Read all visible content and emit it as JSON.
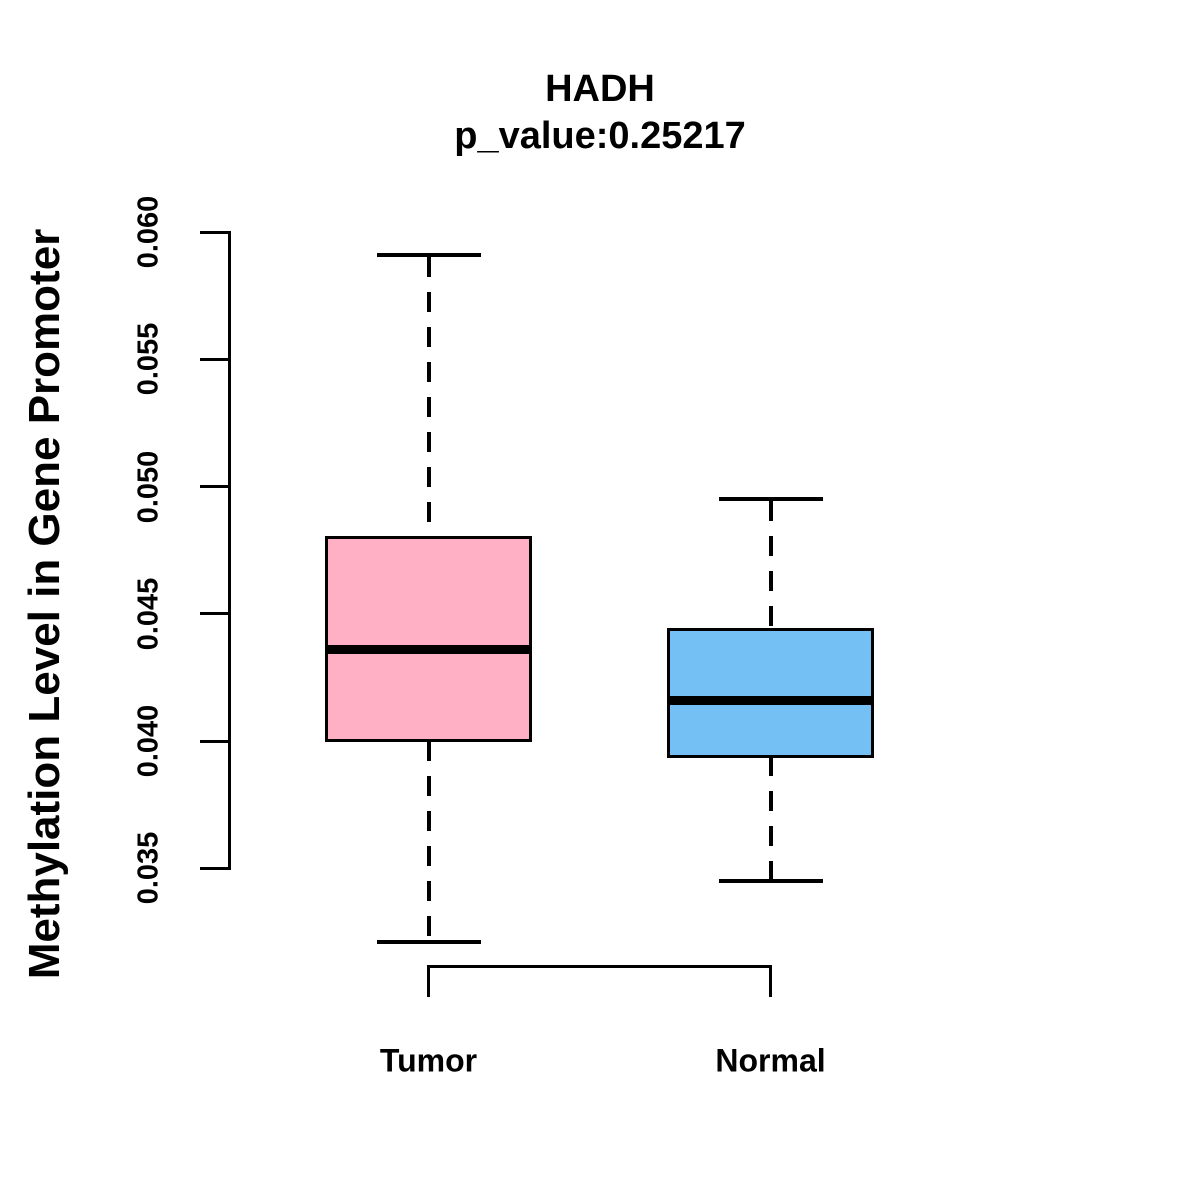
{
  "chart_data": {
    "type": "boxplot",
    "title": "HADH",
    "subtitle": "p_value:0.25217",
    "ylabel": "Methylation Level in Gene Promoter",
    "categories": [
      "Tumor",
      "Normal"
    ],
    "yticks": [
      0.035,
      0.04,
      0.045,
      0.05,
      0.055,
      0.06
    ],
    "ytick_labels": [
      "0.035",
      "0.040",
      "0.045",
      "0.050",
      "0.055",
      "0.060"
    ],
    "grid": "off",
    "legend": "none",
    "line_color": "#000000",
    "background_color": "#ffffff",
    "series": [
      {
        "name": "Tumor",
        "color": "#FFB0C4",
        "whisker_low": 0.0321,
        "q1": 0.04,
        "median": 0.0436,
        "q3": 0.048,
        "whisker_high": 0.0591
      },
      {
        "name": "Normal",
        "color": "#74BFF4",
        "whisker_low": 0.0345,
        "q1": 0.0394,
        "median": 0.0416,
        "q3": 0.0444,
        "whisker_high": 0.0495
      }
    ]
  }
}
